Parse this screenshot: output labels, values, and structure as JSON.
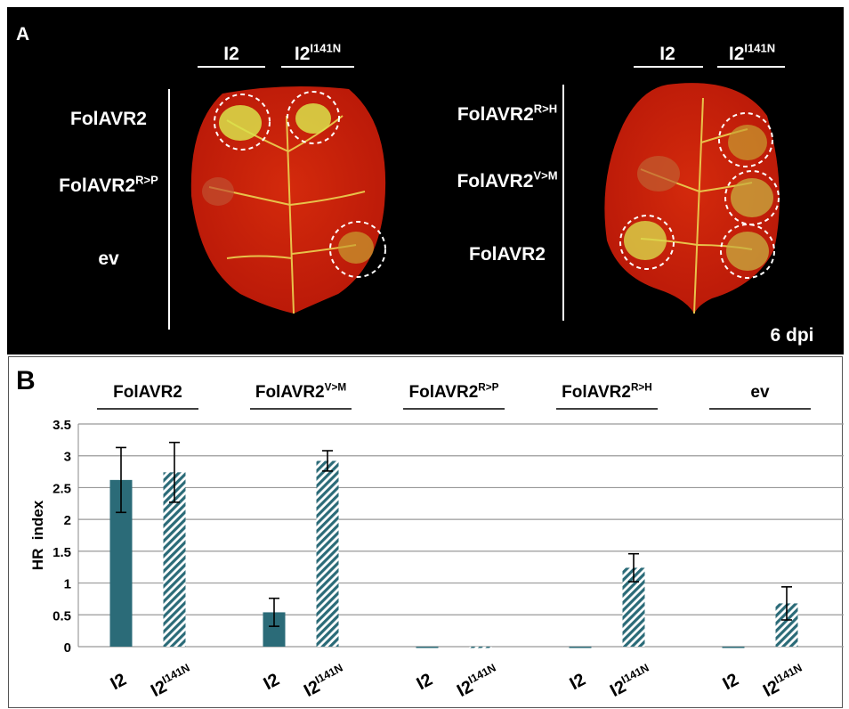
{
  "panel_a": {
    "label": "A",
    "left": {
      "columns": [
        {
          "base": "I2"
        },
        {
          "base": "I2",
          "sup": "I141N"
        }
      ],
      "rows": [
        {
          "base": "FolAVR2"
        },
        {
          "base": "FolAVR2",
          "sup": "R>P"
        },
        {
          "base": "ev"
        }
      ]
    },
    "right": {
      "columns": [
        {
          "base": "I2"
        },
        {
          "base": "I2",
          "sup": "I141N"
        }
      ],
      "rows": [
        {
          "base": "FolAVR2",
          "sup": "R>H"
        },
        {
          "base": "FolAVR2",
          "sup": "V>M"
        },
        {
          "base": "FolAVR2"
        }
      ]
    },
    "time": "6 dpi"
  },
  "chart_data": {
    "type": "bar",
    "panel_label": "B",
    "y_label": "HR  index",
    "groups": [
      {
        "base": "FolAVR2"
      },
      {
        "base": "FolAVR2",
        "sup": "V>M"
      },
      {
        "base": "FolAVR2",
        "sup": "R>P"
      },
      {
        "base": "FolAVR2",
        "sup": "R>H"
      },
      {
        "base": "ev"
      }
    ],
    "series": [
      {
        "name": {
          "base": "I2"
        },
        "color": "#2b6b78",
        "hatch": false,
        "values": [
          2.62,
          0.54,
          0,
          0,
          0
        ],
        "errors": [
          0.51,
          0.22,
          0,
          0,
          0
        ]
      },
      {
        "name": {
          "base": "I2",
          "sup": "I141N"
        },
        "color": "#2b6b78",
        "hatch": true,
        "values": [
          2.74,
          2.92,
          0,
          1.24,
          0.68
        ],
        "errors": [
          0.47,
          0.16,
          0,
          0.22,
          0.26
        ]
      }
    ],
    "ylim": [
      0,
      3.5
    ],
    "yticks": [
      0,
      0.5,
      1,
      1.5,
      2,
      2.5,
      3,
      3.5
    ],
    "grid": true
  }
}
